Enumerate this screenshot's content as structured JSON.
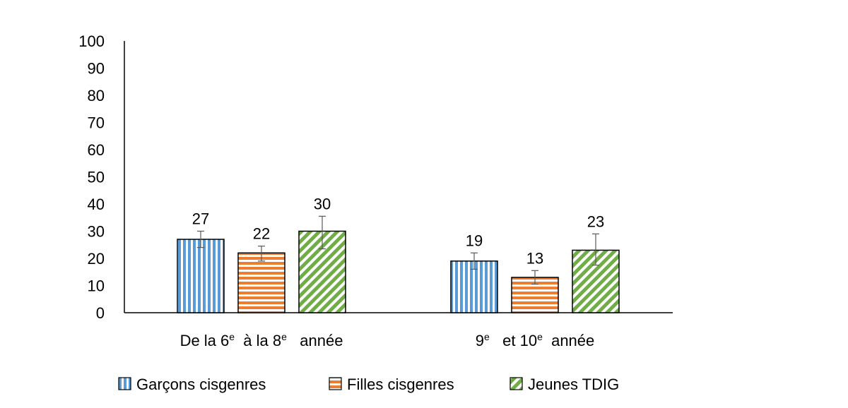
{
  "chart_data": {
    "type": "bar",
    "title": "",
    "xlabel": "",
    "ylabel": "",
    "ylim": [
      0,
      100
    ],
    "yticks": [
      0,
      10,
      20,
      30,
      40,
      50,
      60,
      70,
      80,
      90,
      100
    ],
    "categories": [
      {
        "parts": [
          {
            "t": "De la 6"
          },
          {
            "s": "e"
          },
          {
            "t": "  à la 8"
          },
          {
            "s": "e"
          },
          {
            "t": "   année"
          }
        ]
      },
      {
        "parts": [
          {
            "t": "9"
          },
          {
            "s": "e"
          },
          {
            "t": "   et 10"
          },
          {
            "s": "e"
          },
          {
            "t": "  année"
          }
        ]
      }
    ],
    "series": [
      {
        "name": "Garçons cisgenres",
        "values": [
          27,
          19
        ],
        "err_low": [
          24,
          16
        ],
        "err_high": [
          30,
          22
        ],
        "color": "#5b9bd5",
        "pattern": "vertical"
      },
      {
        "name": "Filles cisgenres",
        "values": [
          22,
          13
        ],
        "err_low": [
          19,
          10.5
        ],
        "err_high": [
          24.5,
          15.5
        ],
        "color": "#ed7d31",
        "pattern": "horizontal"
      },
      {
        "name": "Jeunes TDIG",
        "values": [
          30,
          23
        ],
        "err_low": [
          23.5,
          17.5
        ],
        "err_high": [
          35.5,
          29
        ],
        "color": "#70ad47",
        "pattern": "diagonal"
      }
    ],
    "grid": false,
    "legend_position": "bottom"
  }
}
